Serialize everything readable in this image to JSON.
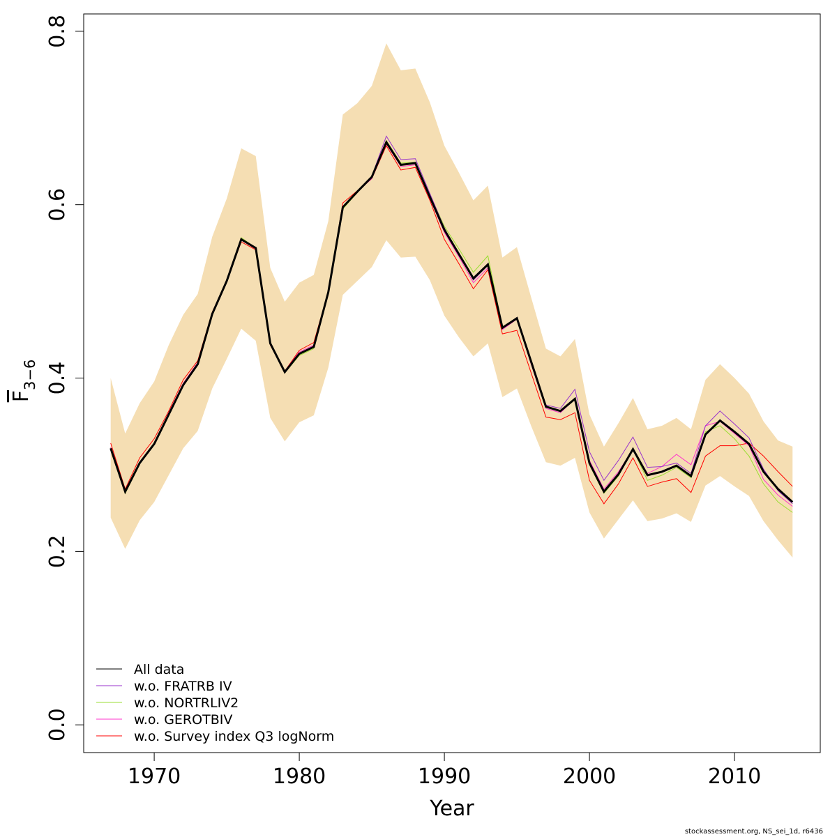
{
  "chart_data": {
    "type": "line",
    "x_label": "Year",
    "y_label": "F",
    "y_label_sub": "3−6",
    "footer": "stockassessment.org, NS_sei_1d, r6436",
    "x": [
      1967,
      1968,
      1969,
      1970,
      1971,
      1972,
      1973,
      1974,
      1975,
      1976,
      1977,
      1978,
      1979,
      1980,
      1981,
      1982,
      1983,
      1984,
      1985,
      1986,
      1987,
      1988,
      1989,
      1990,
      1991,
      1992,
      1993,
      1994,
      1995,
      1996,
      1997,
      1998,
      1999,
      2000,
      2001,
      2002,
      2003,
      2004,
      2005,
      2006,
      2007,
      2008,
      2009,
      2010,
      2011,
      2012,
      2013,
      2014
    ],
    "band": {
      "color": "#f5deb3",
      "upper": [
        0.4,
        0.336,
        0.371,
        0.396,
        0.438,
        0.473,
        0.497,
        0.563,
        0.607,
        0.665,
        0.656,
        0.527,
        0.488,
        0.51,
        0.519,
        0.581,
        0.704,
        0.717,
        0.737,
        0.786,
        0.755,
        0.757,
        0.718,
        0.668,
        0.637,
        0.605,
        0.622,
        0.539,
        0.551,
        0.492,
        0.434,
        0.425,
        0.445,
        0.358,
        0.321,
        0.348,
        0.377,
        0.341,
        0.345,
        0.354,
        0.341,
        0.398,
        0.416,
        0.4,
        0.382,
        0.35,
        0.328,
        0.321
      ],
      "lower": [
        0.239,
        0.203,
        0.236,
        0.257,
        0.288,
        0.319,
        0.339,
        0.388,
        0.422,
        0.457,
        0.443,
        0.354,
        0.327,
        0.349,
        0.357,
        0.412,
        0.496,
        0.512,
        0.528,
        0.559,
        0.539,
        0.54,
        0.513,
        0.472,
        0.447,
        0.425,
        0.44,
        0.378,
        0.388,
        0.344,
        0.303,
        0.299,
        0.308,
        0.245,
        0.215,
        0.237,
        0.259,
        0.235,
        0.238,
        0.244,
        0.234,
        0.276,
        0.287,
        0.275,
        0.264,
        0.235,
        0.213,
        0.193
      ]
    },
    "series": [
      {
        "name": "All data",
        "color": "#000000",
        "values": [
          0.319,
          0.269,
          0.302,
          0.324,
          0.358,
          0.392,
          0.416,
          0.474,
          0.512,
          0.56,
          0.55,
          0.44,
          0.407,
          0.428,
          0.436,
          0.499,
          0.597,
          0.615,
          0.632,
          0.672,
          0.646,
          0.648,
          0.609,
          0.571,
          0.543,
          0.515,
          0.531,
          0.458,
          0.469,
          0.418,
          0.367,
          0.362,
          0.376,
          0.302,
          0.269,
          0.289,
          0.318,
          0.288,
          0.292,
          0.299,
          0.287,
          0.335,
          0.351,
          0.338,
          0.324,
          0.292,
          0.272,
          0.257
        ]
      },
      {
        "name": "w.o. FRATRB IV",
        "color": "#9933cc",
        "values": [
          0.319,
          0.268,
          0.302,
          0.324,
          0.358,
          0.392,
          0.416,
          0.474,
          0.512,
          0.561,
          0.55,
          0.44,
          0.407,
          0.428,
          0.436,
          0.499,
          0.597,
          0.615,
          0.633,
          0.679,
          0.652,
          0.653,
          0.613,
          0.573,
          0.543,
          0.513,
          0.53,
          0.457,
          0.47,
          0.418,
          0.369,
          0.365,
          0.387,
          0.315,
          0.282,
          0.305,
          0.332,
          0.297,
          0.298,
          0.302,
          0.29,
          0.345,
          0.362,
          0.347,
          0.331,
          0.295,
          0.27,
          0.255
        ]
      },
      {
        "name": "w.o. NORTRLIV2",
        "color": "#99dd33",
        "values": [
          0.318,
          0.267,
          0.301,
          0.323,
          0.357,
          0.391,
          0.416,
          0.474,
          0.512,
          0.562,
          0.55,
          0.44,
          0.406,
          0.426,
          0.434,
          0.499,
          0.595,
          0.614,
          0.633,
          0.674,
          0.648,
          0.649,
          0.612,
          0.575,
          0.549,
          0.522,
          0.541,
          0.459,
          0.469,
          0.418,
          0.367,
          0.362,
          0.376,
          0.3,
          0.267,
          0.287,
          0.318,
          0.282,
          0.288,
          0.297,
          0.285,
          0.338,
          0.345,
          0.33,
          0.31,
          0.278,
          0.257,
          0.245
        ]
      },
      {
        "name": "w.o. GEROTBIV",
        "color": "#ff33cc",
        "values": [
          0.32,
          0.27,
          0.303,
          0.325,
          0.36,
          0.394,
          0.418,
          0.474,
          0.512,
          0.559,
          0.549,
          0.44,
          0.408,
          0.43,
          0.438,
          0.499,
          0.598,
          0.615,
          0.63,
          0.67,
          0.644,
          0.646,
          0.607,
          0.568,
          0.54,
          0.51,
          0.527,
          0.456,
          0.468,
          0.415,
          0.365,
          0.36,
          0.376,
          0.305,
          0.272,
          0.292,
          0.318,
          0.29,
          0.298,
          0.312,
          0.3,
          0.345,
          0.35,
          0.336,
          0.322,
          0.283,
          0.265,
          0.252
        ]
      },
      {
        "name": "w.o. Survey index Q3 logNorm",
        "color": "#ff0000",
        "values": [
          0.325,
          0.272,
          0.308,
          0.33,
          0.362,
          0.398,
          0.42,
          0.476,
          0.512,
          0.557,
          0.548,
          0.438,
          0.408,
          0.432,
          0.441,
          0.5,
          0.602,
          0.616,
          0.63,
          0.668,
          0.64,
          0.643,
          0.605,
          0.56,
          0.532,
          0.503,
          0.525,
          0.451,
          0.455,
          0.405,
          0.355,
          0.352,
          0.36,
          0.282,
          0.255,
          0.278,
          0.308,
          0.275,
          0.28,
          0.284,
          0.268,
          0.31,
          0.322,
          0.322,
          0.325,
          0.31,
          0.292,
          0.275
        ]
      }
    ],
    "xlim": [
      1965.14,
      2015.91
    ],
    "ylim": [
      -0.032,
      0.82
    ],
    "xticks": [
      1970,
      1980,
      1990,
      2000,
      2010
    ],
    "yticks": [
      {
        "value": 0,
        "label": "0.0"
      },
      0.2,
      0.4,
      0.6,
      0.8
    ],
    "legend": "bottom-left"
  }
}
